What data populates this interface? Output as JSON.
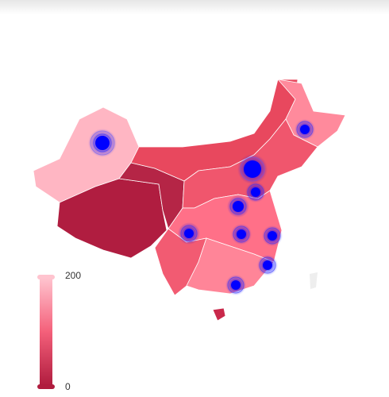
{
  "visual_map": {
    "max": 200,
    "min": 0
  }
}
